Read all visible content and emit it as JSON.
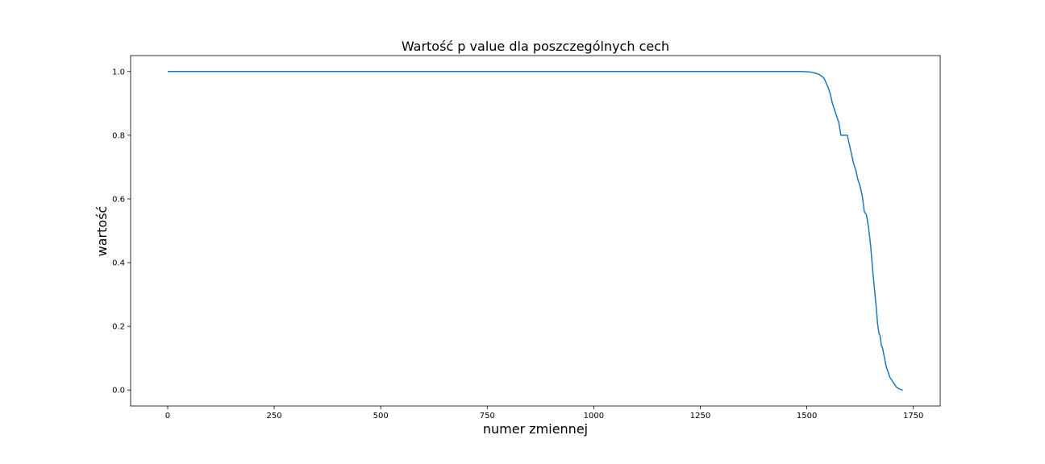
{
  "chart_data": {
    "type": "line",
    "title": "Wartość p value dla poszczególnych cech",
    "xlabel": "numer zmiennej",
    "ylabel": "wartość",
    "xlim": [
      -87,
      1813
    ],
    "ylim": [
      -0.05,
      1.05
    ],
    "xticks": [
      0,
      250,
      500,
      750,
      1000,
      1250,
      1500,
      1750
    ],
    "yticks": [
      0.0,
      0.2,
      0.4,
      0.6,
      0.8,
      1.0
    ],
    "grid": false,
    "color": "#1f77b4",
    "series": [
      {
        "x": [
          0,
          1000,
          1490,
          1510,
          1520,
          1530,
          1540,
          1545,
          1550,
          1555,
          1560,
          1565,
          1570,
          1575,
          1580,
          1585,
          1590,
          1595,
          1600,
          1605,
          1610,
          1615,
          1620,
          1625,
          1630,
          1635,
          1640,
          1645,
          1650,
          1655,
          1660,
          1663,
          1666,
          1669,
          1672,
          1675,
          1678,
          1681,
          1684,
          1687,
          1690,
          1695,
          1700,
          1705,
          1710,
          1715,
          1720,
          1725
        ],
        "y": [
          1.0,
          1.0,
          1.0,
          0.998,
          0.995,
          0.99,
          0.98,
          0.965,
          0.95,
          0.93,
          0.9,
          0.88,
          0.86,
          0.84,
          0.8,
          0.8,
          0.8,
          0.8,
          0.77,
          0.74,
          0.71,
          0.69,
          0.66,
          0.64,
          0.61,
          0.56,
          0.55,
          0.51,
          0.45,
          0.37,
          0.3,
          0.26,
          0.21,
          0.18,
          0.17,
          0.14,
          0.13,
          0.11,
          0.09,
          0.07,
          0.06,
          0.04,
          0.03,
          0.02,
          0.01,
          0.005,
          0.002,
          0.0
        ]
      }
    ]
  }
}
